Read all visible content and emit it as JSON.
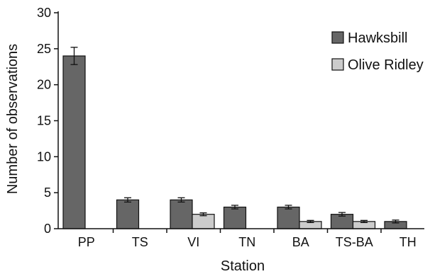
{
  "chart_data": {
    "type": "bar",
    "xlabel": "Station",
    "ylabel": "Number of observations",
    "categories": [
      "PP",
      "TS",
      "VI",
      "TN",
      "BA",
      "TS-BA",
      "TH"
    ],
    "ylim": [
      0,
      30
    ],
    "yticks": [
      0,
      5,
      10,
      15,
      20,
      25,
      30
    ],
    "legend_position": "top-right",
    "series": [
      {
        "name": "Hawksbill",
        "color": "#666666",
        "values": [
          24,
          4,
          4,
          3,
          3,
          2,
          1
        ],
        "errors": [
          1.2,
          0.3,
          0.3,
          0.25,
          0.25,
          0.25,
          0.2
        ]
      },
      {
        "name": "Olive Ridley",
        "color": "#cccccc",
        "values": [
          null,
          null,
          2,
          null,
          1,
          1,
          null
        ],
        "errors": [
          null,
          null,
          0.2,
          null,
          0.15,
          0.15,
          null
        ]
      }
    ]
  }
}
